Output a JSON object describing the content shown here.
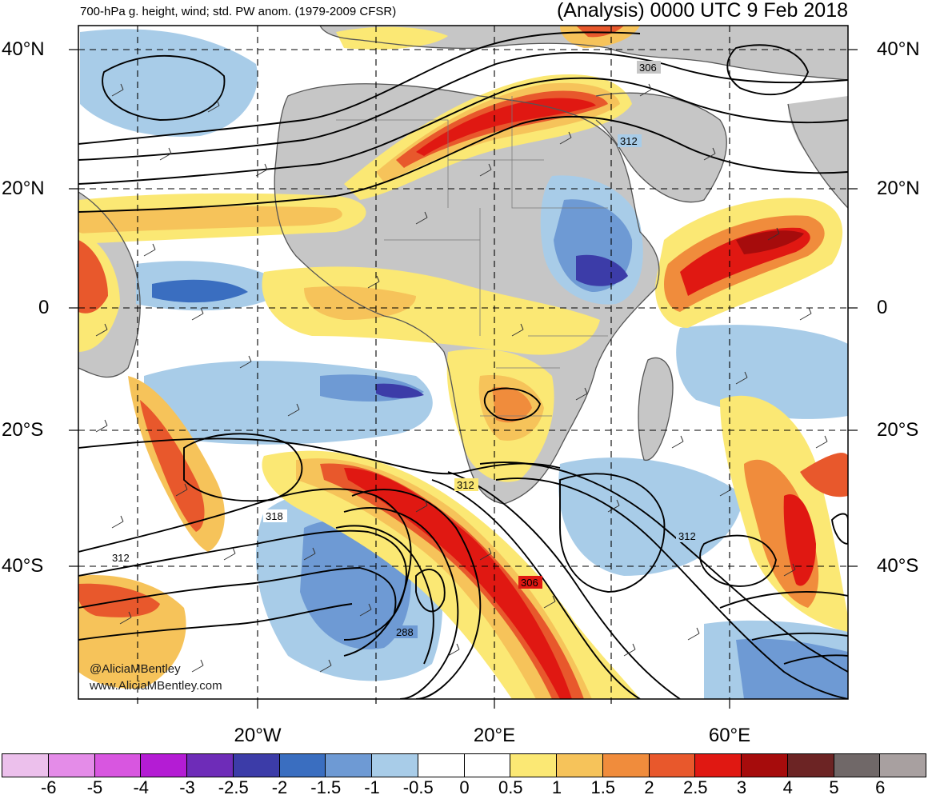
{
  "header": {
    "left_title": "700-hPa g. height, wind; std. PW anom. (1979-2009 CFSR)",
    "right_title": "(Analysis) 0000 UTC 9 Feb 2018"
  },
  "lat_labels": [
    "40°N",
    "20°N",
    "0",
    "20°S",
    "40°S"
  ],
  "lon_labels": [
    "20°W",
    "20°E",
    "60°E"
  ],
  "contour_labels": [
    "306",
    "312",
    "312",
    "318",
    "312",
    "312",
    "306",
    "288"
  ],
  "credits": {
    "twitter": "@AliciaMBentley",
    "website": "www.AliciaMBentley.com"
  },
  "colorbar": {
    "labels": [
      "-6",
      "-5",
      "-4",
      "-3",
      "-2.5",
      "-2",
      "-1.5",
      "-1",
      "-0.5",
      "0",
      "0.5",
      "1",
      "1.5",
      "2",
      "2.5",
      "3",
      "4",
      "5",
      "6"
    ],
    "colors": [
      "#ecc0ec",
      "#e48ce8",
      "#d856e0",
      "#b41cd4",
      "#6e2cb8",
      "#3c3ca8",
      "#3a6ec0",
      "#6e9ad4",
      "#a8cce8",
      "#ffffff",
      "#ffffff",
      "#fbe874",
      "#f6c35a",
      "#f08c3c",
      "#e8582c",
      "#e01812",
      "#a60c0c",
      "#6c2424",
      "#706868",
      "#a8a0a0"
    ]
  },
  "colors": {
    "land": "#c8c8c8",
    "ocean": "#ffffff",
    "grid": "#000000"
  }
}
